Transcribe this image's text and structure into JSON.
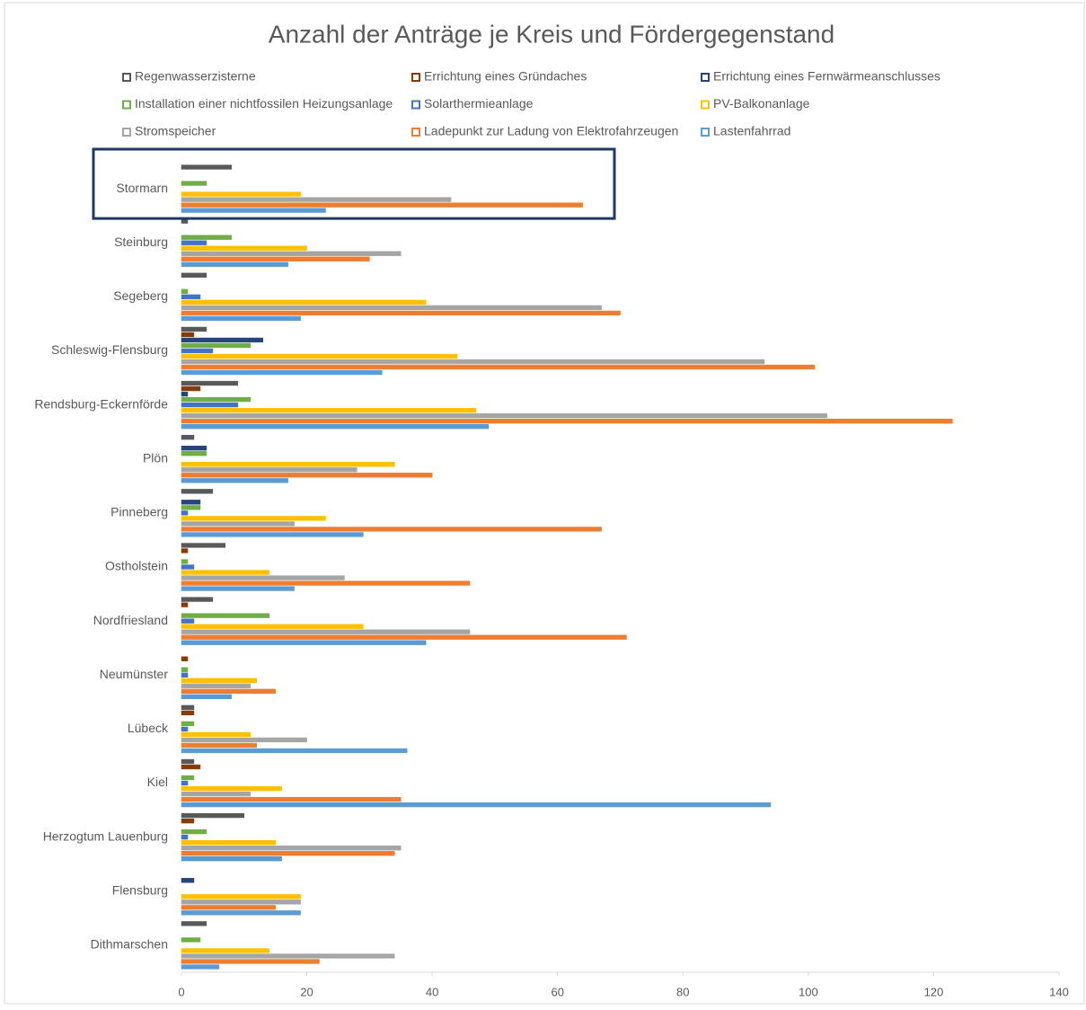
{
  "chart_data": {
    "type": "barh",
    "title": "Anzahl der Anträge je Kreis und Fördergegenstand",
    "categories": [
      "Stormarn",
      "Steinburg",
      "Segeberg",
      "Schleswig-Flensburg",
      "Rendsburg-Eckernförde",
      "Plön",
      "Pinneberg",
      "Ostholstein",
      "Nordfriesland",
      "Neumünster",
      "Lübeck",
      "Kiel",
      "Herzogtum Lauenburg",
      "Flensburg",
      "Dithmarschen"
    ],
    "series": [
      {
        "name": "Regenwasserzisterne",
        "color": "#595959",
        "values": [
          8,
          1,
          4,
          4,
          9,
          2,
          5,
          7,
          5,
          0,
          2,
          2,
          10,
          0,
          4
        ]
      },
      {
        "name": "Errichtung eines Gründaches",
        "color": "#843c0c",
        "values": [
          0,
          0,
          0,
          2,
          3,
          0,
          0,
          1,
          1,
          1,
          2,
          3,
          2,
          0,
          0
        ]
      },
      {
        "name": "Errichtung eines Fernwärmeanschlusses",
        "color": "#264478",
        "values": [
          0,
          0,
          0,
          13,
          1,
          4,
          3,
          0,
          0,
          0,
          0,
          0,
          0,
          2,
          0
        ]
      },
      {
        "name": "Installation einer nichtfossilen Heizungsanlage",
        "color": "#70ad47",
        "values": [
          4,
          8,
          1,
          11,
          11,
          4,
          3,
          1,
          14,
          1,
          2,
          2,
          4,
          0,
          3
        ]
      },
      {
        "name": "Solarthermieanlage",
        "color": "#4472c4",
        "values": [
          0,
          4,
          3,
          5,
          9,
          0,
          1,
          2,
          2,
          1,
          1,
          1,
          1,
          0,
          0
        ]
      },
      {
        "name": "PV-Balkonanlage",
        "color": "#ffc000",
        "values": [
          19,
          20,
          39,
          44,
          47,
          34,
          23,
          14,
          29,
          12,
          11,
          16,
          15,
          19,
          14
        ]
      },
      {
        "name": "Stromspeicher",
        "color": "#a5a5a5",
        "values": [
          43,
          35,
          67,
          93,
          103,
          28,
          18,
          26,
          46,
          11,
          20,
          11,
          35,
          19,
          34
        ]
      },
      {
        "name": "Ladepunkt zur Ladung von Elektrofahrzeugen",
        "color": "#ed7d31",
        "values": [
          64,
          30,
          70,
          101,
          123,
          40,
          67,
          46,
          71,
          15,
          12,
          35,
          34,
          15,
          22
        ]
      },
      {
        "name": "Lastenfahrrad",
        "color": "#5b9bd5",
        "values": [
          23,
          17,
          19,
          32,
          49,
          17,
          29,
          18,
          39,
          8,
          36,
          94,
          16,
          19,
          6
        ]
      }
    ],
    "xlim": [
      0,
      140
    ],
    "xticks": [
      0,
      20,
      40,
      60,
      80,
      100,
      120,
      140
    ]
  }
}
